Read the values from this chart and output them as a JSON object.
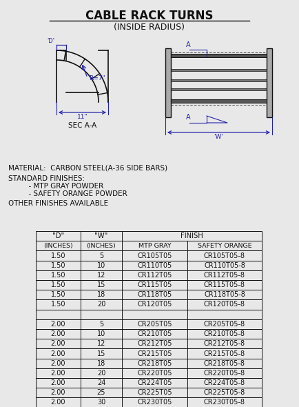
{
  "title": "CABLE RACK TURNS",
  "subtitle": "(INSIDE RADIUS)",
  "material_text": "MATERIAL:  CARBON STEEL(A-36 SIDE BARS)",
  "finishes_title": "STANDARD FINISHES:",
  "finish1": "      - MTP GRAY POWDER",
  "finish2": "      - SAFETY ORANGE POWDER",
  "other_finishes": "OTHER FINISHES AVAILABLE",
  "sec_label": "SEC A-A",
  "table_data": [
    [
      "1.50",
      "5",
      "CR105T05",
      "CR105T05-8"
    ],
    [
      "1.50",
      "10",
      "CR110T05",
      "CR110T05-8"
    ],
    [
      "1.50",
      "12",
      "CR112T05",
      "CR112T05-8"
    ],
    [
      "1.50",
      "15",
      "CR115T05",
      "CR115T05-8"
    ],
    [
      "1.50",
      "18",
      "CR118T05",
      "CR118T05-8"
    ],
    [
      "1.50",
      "20",
      "CR120T05",
      "CR120T05-8"
    ],
    [
      "",
      "",
      "",
      ""
    ],
    [
      "2.00",
      "5",
      "CR205T05",
      "CR205T05-8"
    ],
    [
      "2.00",
      "10",
      "CR210T05",
      "CR210T05-8"
    ],
    [
      "2.00",
      "12",
      "CR212T05",
      "CR212T05-8"
    ],
    [
      "2.00",
      "15",
      "CR215T05",
      "CR215T05-8"
    ],
    [
      "2.00",
      "18",
      "CR218T05",
      "CR218T05-8"
    ],
    [
      "2.00",
      "20",
      "CR220T05",
      "CR220T05-8"
    ],
    [
      "2.00",
      "24",
      "CR224T05",
      "CR224T05-8"
    ],
    [
      "2.00",
      "25",
      "CR225T05",
      "CR225T05-8"
    ],
    [
      "2.00",
      "30",
      "CR230T05",
      "CR230T05-8"
    ]
  ],
  "blue": "#2222AA",
  "black": "#111111",
  "bg": "#e8e8e8"
}
